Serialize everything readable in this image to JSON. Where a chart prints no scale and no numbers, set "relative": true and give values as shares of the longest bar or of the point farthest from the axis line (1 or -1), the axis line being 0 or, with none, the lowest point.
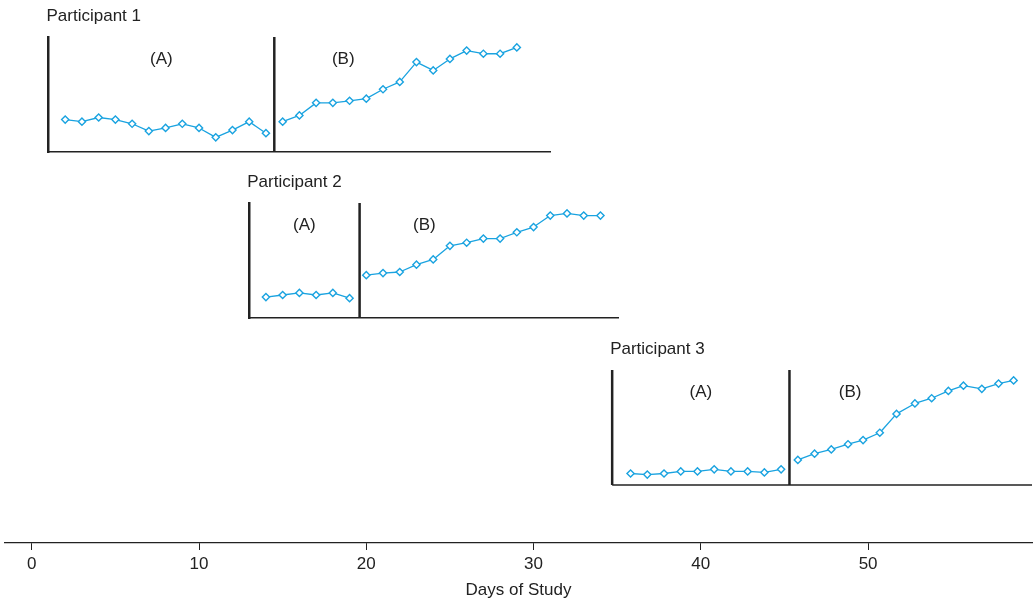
{
  "chart_data": [
    {
      "type": "line",
      "title": "Participant 1",
      "relative": true,
      "xlim": [
        1,
        31
      ],
      "xticks": [
        10,
        20,
        30
      ],
      "tick_labels": false,
      "marker": "diamond",
      "line_style": "solid",
      "series": [
        {
          "color": "#1aa3e0",
          "x": [
            2,
            3,
            4,
            5,
            6,
            7,
            8,
            9,
            10,
            11,
            12,
            13,
            14
          ],
          "values": [
            0.31,
            0.29,
            0.33,
            0.31,
            0.27,
            0.2,
            0.23,
            0.27,
            0.23,
            0.14,
            0.21,
            0.29,
            0.18
          ]
        },
        {
          "color": "#1aa3e0",
          "x": [
            15,
            16,
            17,
            18,
            19,
            20,
            21,
            22,
            23,
            24,
            25,
            26,
            27,
            28,
            29
          ],
          "values": [
            0.29,
            0.35,
            0.47,
            0.47,
            0.49,
            0.51,
            0.6,
            0.67,
            0.86,
            0.78,
            0.89,
            0.97,
            0.94,
            0.94,
            1
          ]
        }
      ],
      "ref_lines": [
        {
          "axis": "x",
          "value": 14.5,
          "color": "#222222"
        }
      ],
      "annotations": [
        "(A)",
        "(B)"
      ]
    },
    {
      "type": "line",
      "title": "Participant 2",
      "relative": true,
      "xlim": [
        13,
        35.1
      ],
      "xticks": [
        20,
        30
      ],
      "tick_labels": false,
      "marker": "diamond",
      "line_style": "solid",
      "series": [
        {
          "color": "#1aa3e0",
          "x": [
            14,
            15,
            16,
            17,
            18,
            19
          ],
          "values": [
            0.2,
            0.22,
            0.24,
            0.22,
            0.24,
            0.19
          ]
        },
        {
          "color": "#1aa3e0",
          "x": [
            20,
            21,
            22,
            23,
            24,
            25,
            26,
            27,
            28,
            29,
            30,
            31,
            32,
            33,
            34
          ],
          "values": [
            0.41,
            0.43,
            0.44,
            0.51,
            0.56,
            0.69,
            0.72,
            0.76,
            0.76,
            0.82,
            0.87,
            0.98,
            1,
            0.98,
            0.98
          ]
        }
      ],
      "ref_lines": [
        {
          "axis": "x",
          "value": 19.6,
          "color": "#222222"
        }
      ],
      "annotations": [
        "(A)",
        "(B)"
      ]
    },
    {
      "type": "line",
      "title": "Participant 3",
      "relative": true,
      "xlim": [
        -1.6,
        59.8
      ],
      "xticks": [
        0,
        10,
        20,
        30,
        40,
        50
      ],
      "xlabel": "Days of Study",
      "marker": "diamond",
      "line_style": "solid",
      "series": [
        {
          "color": "#1aa3e0",
          "x": [
            35.8,
            36.8,
            37.8,
            38.8,
            39.8,
            40.8,
            41.8,
            42.8,
            43.8,
            44.8
          ],
          "values": [
            0.11,
            0.1,
            0.11,
            0.13,
            0.13,
            0.15,
            0.13,
            0.13,
            0.12,
            0.15
          ]
        },
        {
          "color": "#1aa3e0",
          "x": [
            45.8,
            46.8,
            47.8,
            48.8,
            49.7,
            50.7,
            51.7,
            52.8,
            53.8,
            54.8,
            55.7,
            56.8,
            57.8,
            58.7
          ],
          "values": [
            0.24,
            0.3,
            0.34,
            0.39,
            0.43,
            0.5,
            0.68,
            0.78,
            0.83,
            0.9,
            0.95,
            0.92,
            0.97,
            1
          ]
        }
      ],
      "ref_lines": [
        {
          "axis": "x",
          "value": 34.7,
          "color": "#222222"
        },
        {
          "axis": "x",
          "value": 45.3,
          "color": "#222222"
        },
        {
          "axis": "y",
          "value": 0,
          "color": "#222222"
        }
      ],
      "annotations": [
        "(A)",
        "(B)"
      ]
    }
  ]
}
